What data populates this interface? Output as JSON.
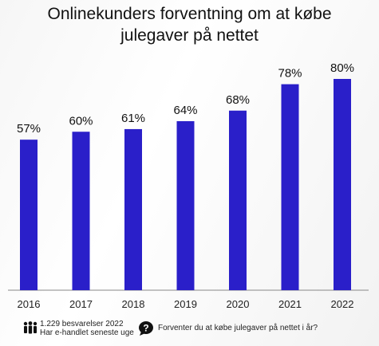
{
  "title_lines": [
    "Onlinekunders forventning om at købe",
    "julegaver på nettet"
  ],
  "chart_data": {
    "type": "bar",
    "categories": [
      "2016",
      "2017",
      "2018",
      "2019",
      "2020",
      "2021",
      "2022"
    ],
    "values": [
      57,
      60,
      61,
      64,
      68,
      78,
      80
    ],
    "labels": [
      "57%",
      "60%",
      "61%",
      "64%",
      "68%",
      "78%",
      "80%"
    ],
    "title": "Onlinekunders forventning om at købe julegaver på nettet",
    "xlabel": "",
    "ylabel": "",
    "ylim": [
      0,
      100
    ],
    "grid": false,
    "bar_color": "#2a1fc9"
  },
  "footer": {
    "respondents_line1": "1.229 besvarelser 2022",
    "respondents_line2": "Har e-handlet seneste uge",
    "people_icon": "people-icon",
    "question_icon": "speech-bubble-question-icon",
    "question": "Forventer du at købe julegaver på nettet i år?"
  }
}
